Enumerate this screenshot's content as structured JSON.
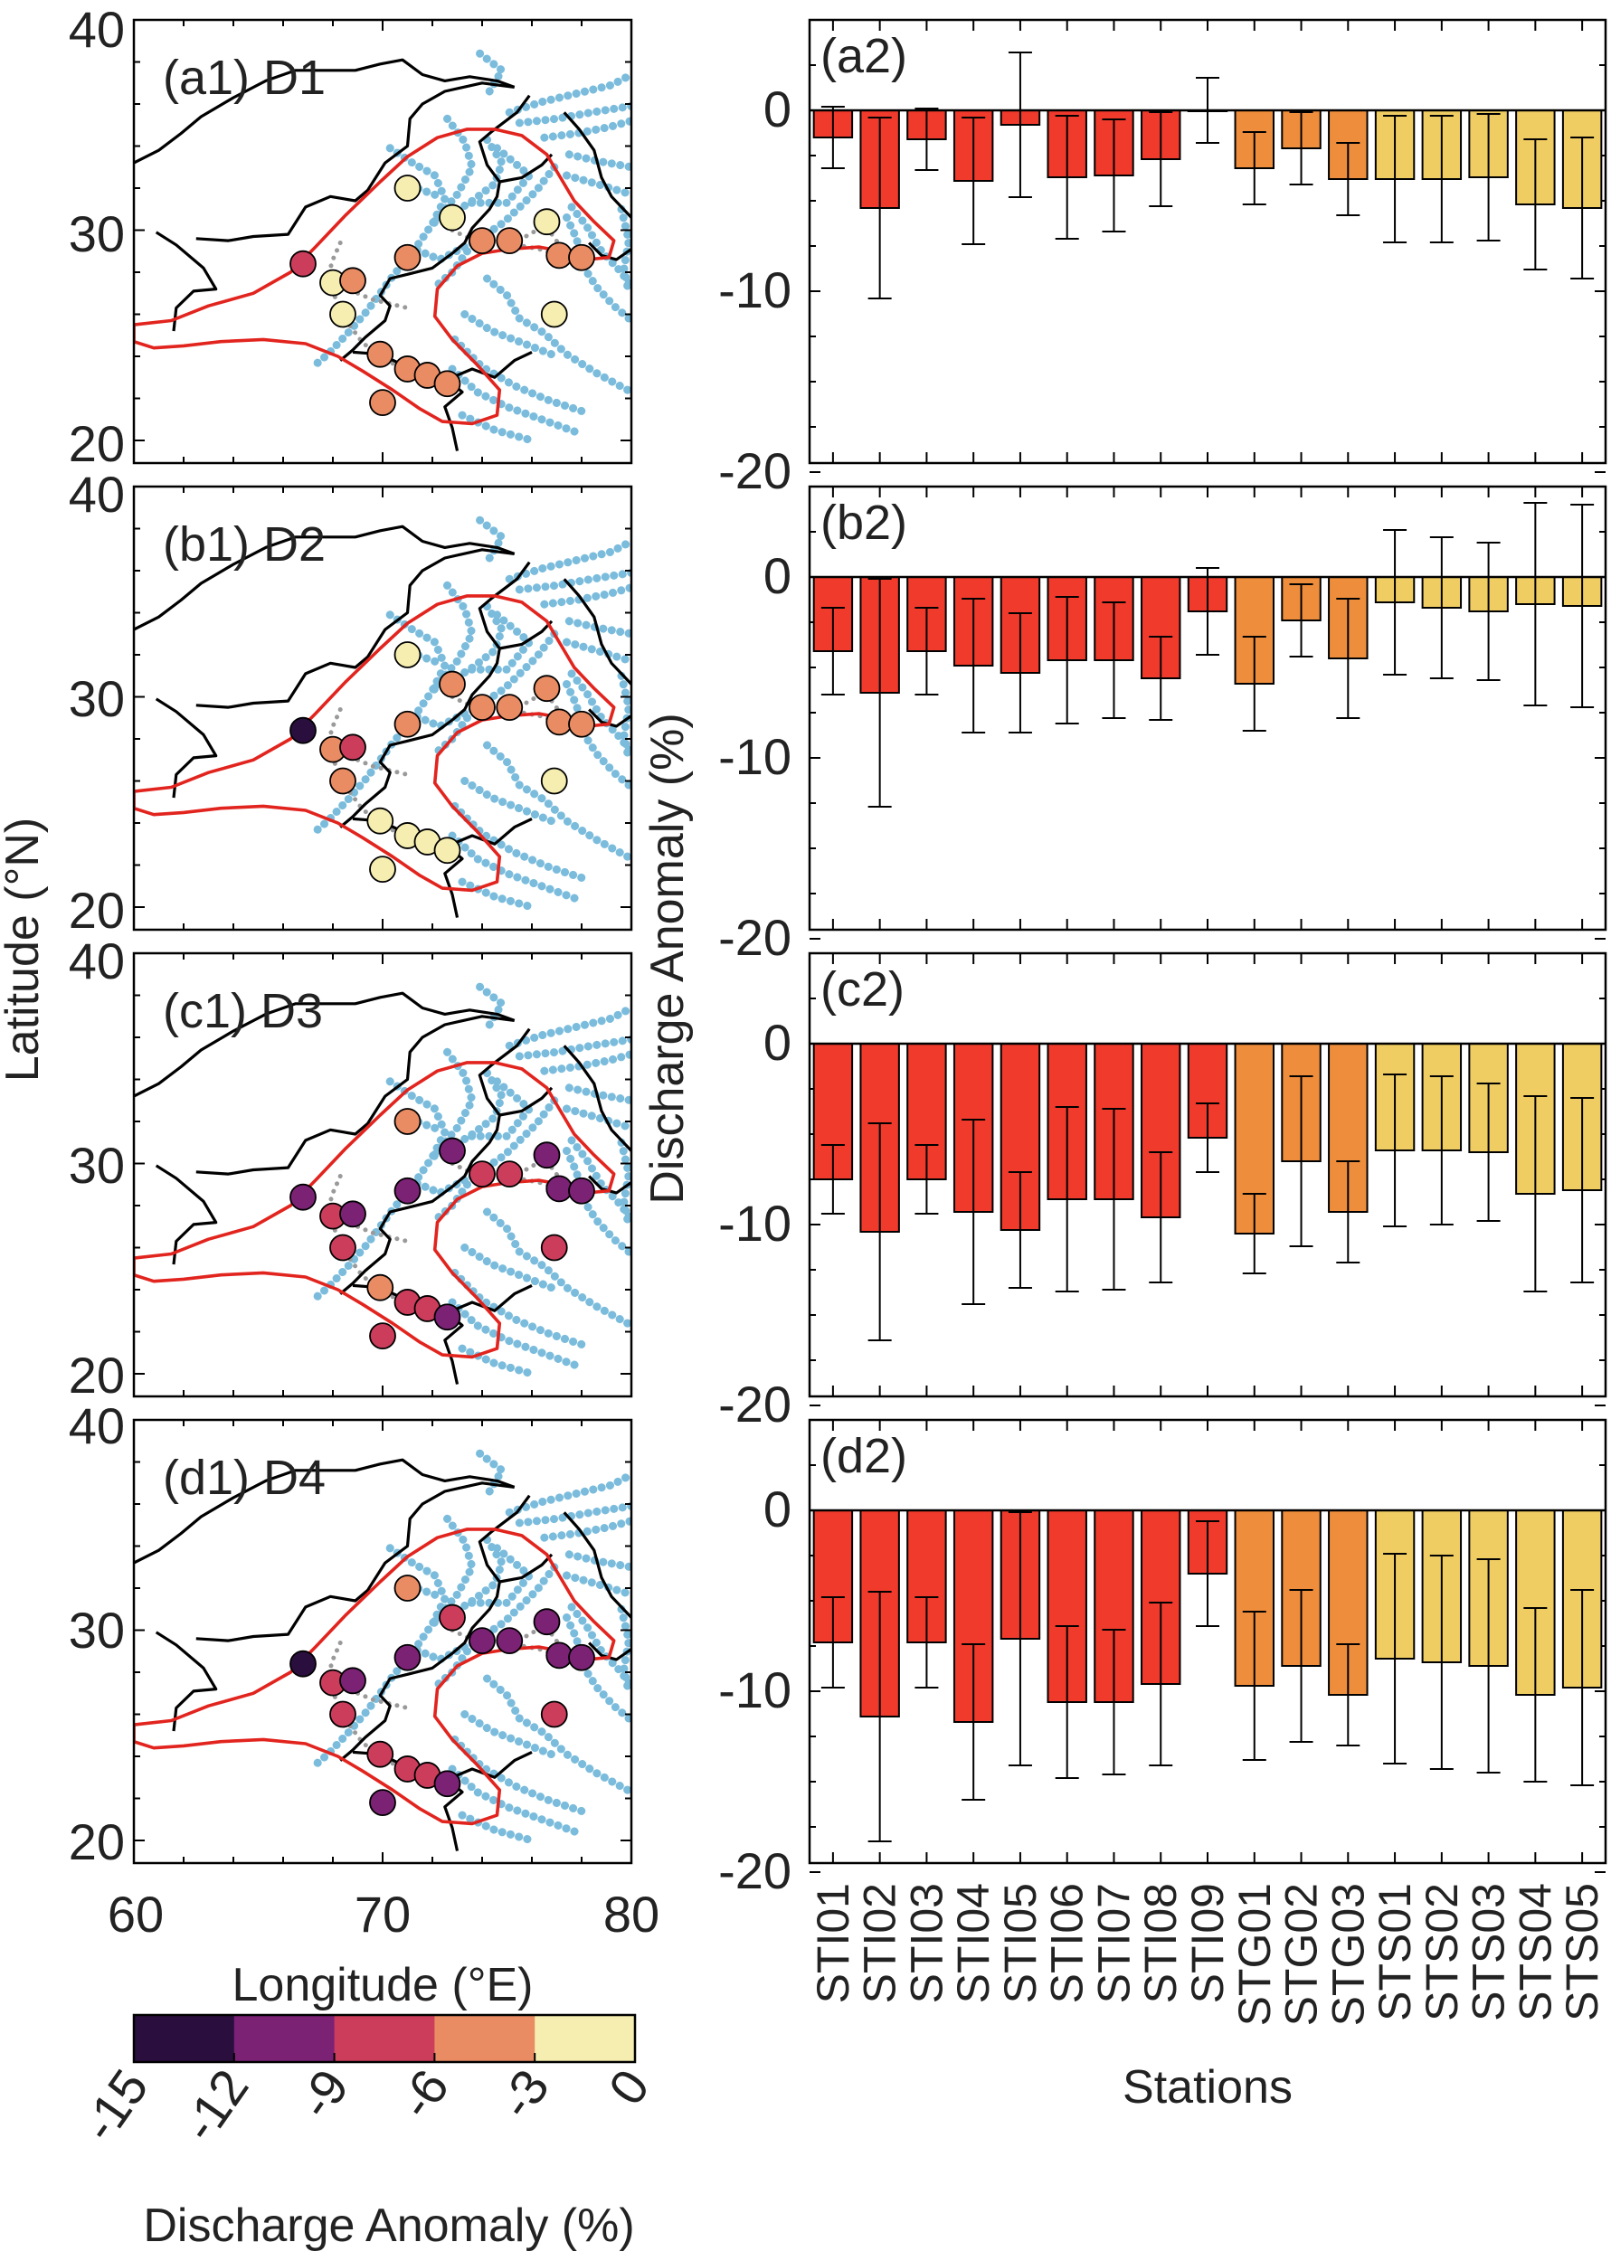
{
  "figure": {
    "map_ylabel": "Latitude (°N)",
    "map_xlabel": "Longitude (°E)",
    "map_xticks": [
      "60",
      "70",
      "80"
    ],
    "map_yticks": [
      "40",
      "30",
      "20"
    ],
    "bar_ylabel": "Discharge Anomaly (%)",
    "bar_xlabel": "Stations",
    "colorbar": {
      "title": "Discharge Anomaly (%)",
      "ticks": [
        "-15",
        "-12",
        "-9",
        "-6",
        "-3",
        "0"
      ],
      "bins": [
        {
          "range": "-15 to -12",
          "color": "#2a0f3e"
        },
        {
          "range": "-12 to -9",
          "color": "#7b2275"
        },
        {
          "range": "-9 to -6",
          "color": "#cc3d5c"
        },
        {
          "range": "-6 to -3",
          "color": "#e98c64"
        },
        {
          "range": "-3 to 0",
          "color": "#f5eeb0"
        }
      ]
    },
    "colors": {
      "region_outline": "#e2241e",
      "rivers": "#7bbcdc",
      "borders": "#000000",
      "grey_points": "#9a9a9a",
      "bar_STI": "#ef3a2c",
      "bar_STG": "#ee8e3c",
      "bar_STS": "#efcd63"
    }
  },
  "maps": [
    {
      "label": "(a1) D1"
    },
    {
      "label": "(b1) D2"
    },
    {
      "label": "(c1) D3"
    },
    {
      "label": "(d1) D4"
    }
  ],
  "chart_data": [
    {
      "type": "bar",
      "title": "(a2)",
      "categories": [
        "STI01",
        "STI02",
        "STI03",
        "STI04",
        "STI05",
        "STI06",
        "STI07",
        "STI08",
        "STI09",
        "STG01",
        "STG02",
        "STG03",
        "STS01",
        "STS02",
        "STS03",
        "STS04",
        "STS05"
      ],
      "values": [
        -1.5,
        -5.4,
        -1.6,
        -3.9,
        -0.8,
        -3.7,
        -3.6,
        -2.7,
        0.0,
        -3.2,
        -2.1,
        -3.8,
        -3.8,
        -3.8,
        -3.7,
        -5.2,
        -5.4
      ],
      "errors": [
        1.7,
        5.0,
        1.7,
        3.5,
        4.0,
        3.4,
        3.1,
        2.6,
        1.8,
        2.0,
        2.0,
        2.0,
        3.5,
        3.5,
        3.5,
        3.6,
        3.9
      ],
      "ylim": [
        -20,
        5
      ],
      "yticks": [
        0,
        -10,
        -20
      ],
      "xlabel": "Stations",
      "ylabel": "Discharge Anomaly (%)"
    },
    {
      "type": "bar",
      "title": "(b2)",
      "categories": [
        "STI01",
        "STI02",
        "STI03",
        "STI04",
        "STI05",
        "STI06",
        "STI07",
        "STI08",
        "STI09",
        "STG01",
        "STG02",
        "STG03",
        "STS01",
        "STS02",
        "STS03",
        "STS04",
        "STS05"
      ],
      "values": [
        -4.1,
        -6.4,
        -4.1,
        -4.9,
        -5.3,
        -4.6,
        -4.6,
        -5.6,
        -1.9,
        -5.9,
        -2.4,
        -4.5,
        -1.4,
        -1.7,
        -1.9,
        -1.5,
        -1.6
      ],
      "errors": [
        2.4,
        6.3,
        2.4,
        3.7,
        3.3,
        3.5,
        3.2,
        2.3,
        2.4,
        2.6,
        2.0,
        3.3,
        4.0,
        3.9,
        3.8,
        5.6,
        5.6
      ],
      "ylim": [
        -20,
        5
      ],
      "yticks": [
        0,
        -10,
        -20
      ],
      "xlabel": "Stations",
      "ylabel": "Discharge Anomaly (%)"
    },
    {
      "type": "bar",
      "title": "(c2)",
      "categories": [
        "STI01",
        "STI02",
        "STI03",
        "STI04",
        "STI05",
        "STI06",
        "STI07",
        "STI08",
        "STI09",
        "STG01",
        "STG02",
        "STG03",
        "STS01",
        "STS02",
        "STS03",
        "STS04",
        "STS05"
      ],
      "values": [
        -7.5,
        -10.4,
        -7.5,
        -9.3,
        -10.3,
        -8.6,
        -8.6,
        -9.6,
        -5.2,
        -10.5,
        -6.5,
        -9.3,
        -5.9,
        -5.9,
        -6.0,
        -8.3,
        -8.1
      ],
      "errors": [
        1.9,
        6.0,
        1.9,
        5.1,
        3.2,
        5.1,
        5.0,
        3.6,
        1.9,
        2.2,
        4.7,
        2.8,
        4.2,
        4.1,
        3.8,
        5.4,
        5.1
      ],
      "ylim": [
        -20,
        5
      ],
      "yticks": [
        0,
        -10,
        -20
      ],
      "xlabel": "Stations",
      "ylabel": "Discharge Anomaly (%)"
    },
    {
      "type": "bar",
      "title": "(d2)",
      "categories": [
        "STI01",
        "STI02",
        "STI03",
        "STI04",
        "STI05",
        "STI06",
        "STI07",
        "STI08",
        "STI09",
        "STG01",
        "STG02",
        "STG03",
        "STS01",
        "STS02",
        "STS03",
        "STS04",
        "STS05"
      ],
      "values": [
        -7.3,
        -11.4,
        -7.3,
        -11.7,
        -7.1,
        -10.6,
        -10.6,
        -9.6,
        -3.5,
        -9.7,
        -8.6,
        -10.2,
        -8.2,
        -8.4,
        -8.6,
        -10.2,
        -9.8
      ],
      "errors": [
        2.5,
        6.9,
        2.5,
        4.3,
        7.0,
        4.2,
        4.0,
        4.5,
        2.9,
        4.1,
        4.2,
        2.8,
        5.8,
        5.9,
        5.9,
        4.8,
        5.4
      ],
      "ylim": [
        -20,
        5
      ],
      "yticks": [
        0,
        -10,
        -20
      ],
      "xlabel": "Stations",
      "ylabel": "Discharge Anomaly (%)"
    }
  ]
}
